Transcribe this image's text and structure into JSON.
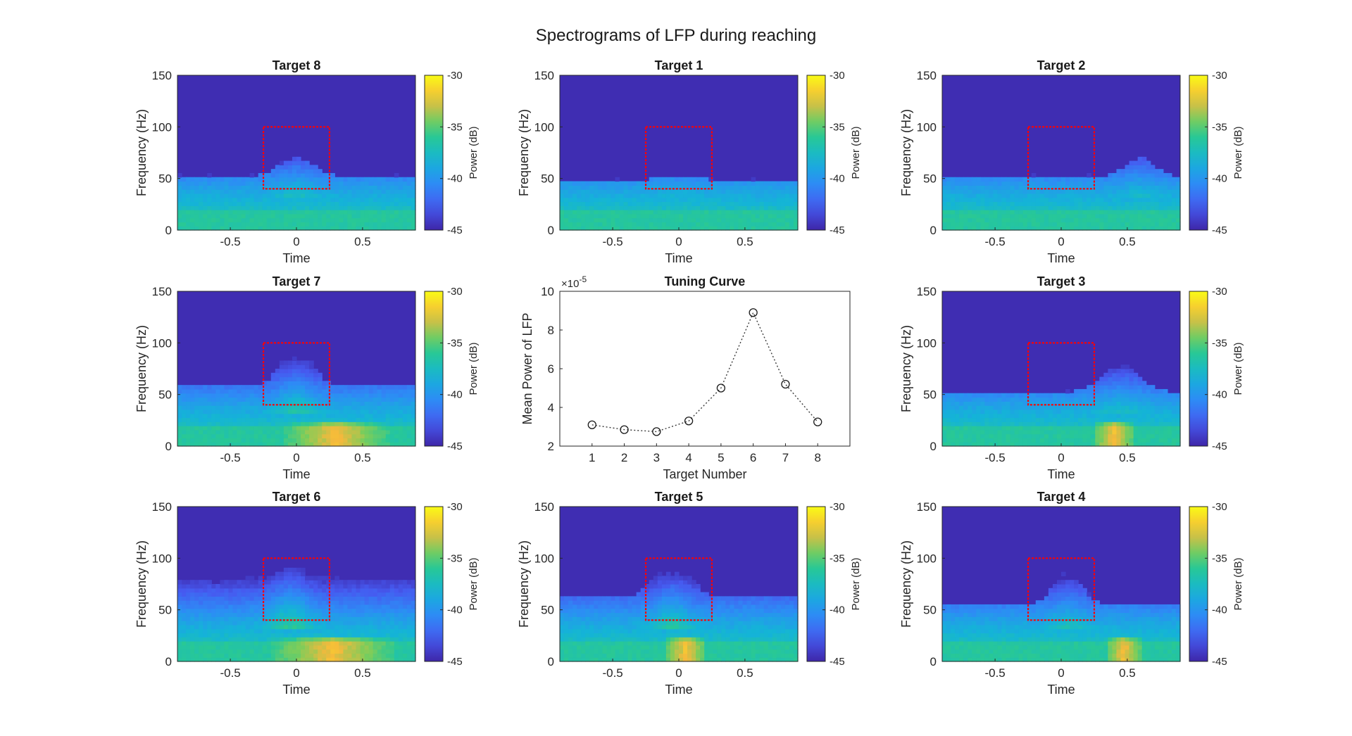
{
  "figure": {
    "title": "Spectrograms of LFP during reaching"
  },
  "colors": {
    "parula_low": "#3E26A8",
    "parula_mid": "#17BEB9",
    "parula_high": "#F9FB15",
    "roi_box": "#FF0000",
    "tuning_line": "#3C3C3C"
  },
  "chart_data": [
    {
      "type": "heatmap",
      "title": "Target 8",
      "xlabel": "Time",
      "ylabel": "Frequency (Hz)",
      "xlim": [
        -0.9,
        0.9
      ],
      "ylim": [
        0,
        150
      ],
      "xticks": [
        "-0.5",
        "0",
        "0.5"
      ],
      "yticks": [
        "0",
        "50",
        "100",
        "150"
      ],
      "colorbar": {
        "label": "Power (dB)",
        "range": [
          -45,
          -30
        ],
        "ticks": [
          "-30",
          "-35",
          "-40",
          "-45"
        ]
      },
      "roi": {
        "time": [
          -0.25,
          0.25
        ],
        "freq": [
          40,
          100
        ]
      },
      "bump": {
        "center": 0.0,
        "height": 18,
        "width": 0.18,
        "strength": 0.5
      },
      "low_band_hot": [],
      "edge": 52
    },
    {
      "type": "heatmap",
      "title": "Target 1",
      "xlabel": "Time",
      "ylabel": "Frequency (Hz)",
      "xlim": [
        -0.9,
        0.9
      ],
      "ylim": [
        0,
        150
      ],
      "xticks": [
        "-0.5",
        "0",
        "0.5"
      ],
      "yticks": [
        "0",
        "50",
        "100",
        "150"
      ],
      "colorbar": {
        "label": "Power (dB)",
        "range": [
          -45,
          -30
        ],
        "ticks": [
          "-30",
          "-35",
          "-40",
          "-45"
        ]
      },
      "roi": {
        "time": [
          -0.25,
          0.25
        ],
        "freq": [
          40,
          100
        ]
      },
      "bump": {
        "center": 0.0,
        "height": 5,
        "width": 0.2,
        "strength": 0.2
      },
      "low_band_hot": [],
      "edge": 48
    },
    {
      "type": "heatmap",
      "title": "Target 2",
      "xlabel": "Time",
      "ylabel": "Frequency (Hz)",
      "xlim": [
        -0.9,
        0.9
      ],
      "ylim": [
        0,
        150
      ],
      "xticks": [
        "-0.5",
        "0",
        "0.5"
      ],
      "yticks": [
        "0",
        "50",
        "100",
        "150"
      ],
      "colorbar": {
        "label": "Power (dB)",
        "range": [
          -45,
          -30
        ],
        "ticks": [
          "-30",
          "-35",
          "-40",
          "-45"
        ]
      },
      "roi": {
        "time": [
          -0.25,
          0.25
        ],
        "freq": [
          40,
          100
        ]
      },
      "bump": {
        "center": 0.6,
        "height": 18,
        "width": 0.15,
        "strength": 0.4
      },
      "low_band_hot": [],
      "edge": 52
    },
    {
      "type": "heatmap",
      "title": "Target 7",
      "xlabel": "Time",
      "ylabel": "Frequency (Hz)",
      "xlim": [
        -0.9,
        0.9
      ],
      "ylim": [
        0,
        150
      ],
      "xticks": [
        "-0.5",
        "0",
        "0.5"
      ],
      "yticks": [
        "0",
        "50",
        "100",
        "150"
      ],
      "colorbar": {
        "label": "Power (dB)",
        "range": [
          -45,
          -30
        ],
        "ticks": [
          "-30",
          "-35",
          "-40",
          "-45"
        ]
      },
      "roi": {
        "time": [
          -0.25,
          0.25
        ],
        "freq": [
          40,
          100
        ]
      },
      "bump": {
        "center": 0.0,
        "height": 45,
        "width": 0.15,
        "strength": 0.8
      },
      "low_band_hot": [
        [
          -0.1,
          0.7
        ]
      ],
      "edge": 58
    },
    {
      "type": "scatter",
      "title": "Tuning Curve",
      "xlabel": "Target Number",
      "ylabel": "Mean Power of LFP",
      "y_exponent_label": "×10",
      "y_exponent": "-5",
      "xlim": [
        0,
        9
      ],
      "ylim": [
        2,
        10
      ],
      "xticks": [
        "1",
        "2",
        "3",
        "4",
        "5",
        "6",
        "7",
        "8"
      ],
      "yticks": [
        "2",
        "4",
        "6",
        "8",
        "10"
      ],
      "x": [
        1,
        2,
        3,
        4,
        5,
        6,
        7,
        8
      ],
      "y": [
        3.1,
        2.85,
        2.75,
        3.3,
        5.0,
        8.9,
        5.2,
        3.25
      ],
      "line_style": "dotted",
      "marker": "open-circle"
    },
    {
      "type": "heatmap",
      "title": "Target 3",
      "xlabel": "Time",
      "ylabel": "Frequency (Hz)",
      "xlim": [
        -0.9,
        0.9
      ],
      "ylim": [
        0,
        150
      ],
      "xticks": [
        "-0.5",
        "0",
        "0.5"
      ],
      "yticks": [
        "0",
        "50",
        "100",
        "150"
      ],
      "colorbar": {
        "label": "Power (dB)",
        "range": [
          -45,
          -30
        ],
        "ticks": [
          "-30",
          "-35",
          "-40",
          "-45"
        ]
      },
      "roi": {
        "time": [
          -0.25,
          0.25
        ],
        "freq": [
          40,
          100
        ]
      },
      "bump": {
        "center": 0.45,
        "height": 25,
        "width": 0.2,
        "strength": 0.45
      },
      "low_band_hot": [
        [
          0.25,
          0.55
        ]
      ],
      "edge": 52
    },
    {
      "type": "heatmap",
      "title": "Target 6",
      "xlabel": "Time",
      "ylabel": "Frequency (Hz)",
      "xlim": [
        -0.9,
        0.9
      ],
      "ylim": [
        0,
        150
      ],
      "xticks": [
        "-0.5",
        "0",
        "0.5"
      ],
      "yticks": [
        "0",
        "50",
        "100",
        "150"
      ],
      "colorbar": {
        "label": "Power (dB)",
        "range": [
          -45,
          -30
        ],
        "ticks": [
          "-30",
          "-35",
          "-40",
          "-45"
        ]
      },
      "roi": {
        "time": [
          -0.25,
          0.25
        ],
        "freq": [
          40,
          100
        ]
      },
      "bump": {
        "center": -0.05,
        "height": 65,
        "width": 0.18,
        "strength": 1.0
      },
      "low_band_hot": [
        [
          -0.2,
          0.75
        ]
      ],
      "edge": 78
    },
    {
      "type": "heatmap",
      "title": "Target 5",
      "xlabel": "Time",
      "ylabel": "Frequency (Hz)",
      "xlim": [
        -0.9,
        0.9
      ],
      "ylim": [
        0,
        150
      ],
      "xticks": [
        "-0.5",
        "0",
        "0.5"
      ],
      "yticks": [
        "0",
        "50",
        "100",
        "150"
      ],
      "colorbar": {
        "label": "Power (dB)",
        "range": [
          -45,
          -30
        ],
        "ticks": [
          "-30",
          "-35",
          "-40",
          "-45"
        ]
      },
      "roi": {
        "time": [
          -0.25,
          0.25
        ],
        "freq": [
          40,
          100
        ]
      },
      "bump": {
        "center": -0.05,
        "height": 50,
        "width": 0.16,
        "strength": 0.85
      },
      "low_band_hot": [
        [
          -0.1,
          0.2
        ]
      ],
      "edge": 62
    },
    {
      "type": "heatmap",
      "title": "Target 4",
      "xlabel": "Time",
      "ylabel": "Frequency (Hz)",
      "xlim": [
        -0.9,
        0.9
      ],
      "ylim": [
        0,
        150
      ],
      "xticks": [
        "-0.5",
        "0",
        "0.5"
      ],
      "yticks": [
        "0",
        "50",
        "100",
        "150"
      ],
      "colorbar": {
        "label": "Power (dB)",
        "range": [
          -45,
          -30
        ],
        "ticks": [
          "-30",
          "-35",
          "-40",
          "-45"
        ]
      },
      "roi": {
        "time": [
          -0.25,
          0.25
        ],
        "freq": [
          40,
          100
        ]
      },
      "bump": {
        "center": 0.05,
        "height": 30,
        "width": 0.15,
        "strength": 0.6
      },
      "low_band_hot": [
        [
          0.35,
          0.6
        ]
      ],
      "edge": 55
    }
  ]
}
